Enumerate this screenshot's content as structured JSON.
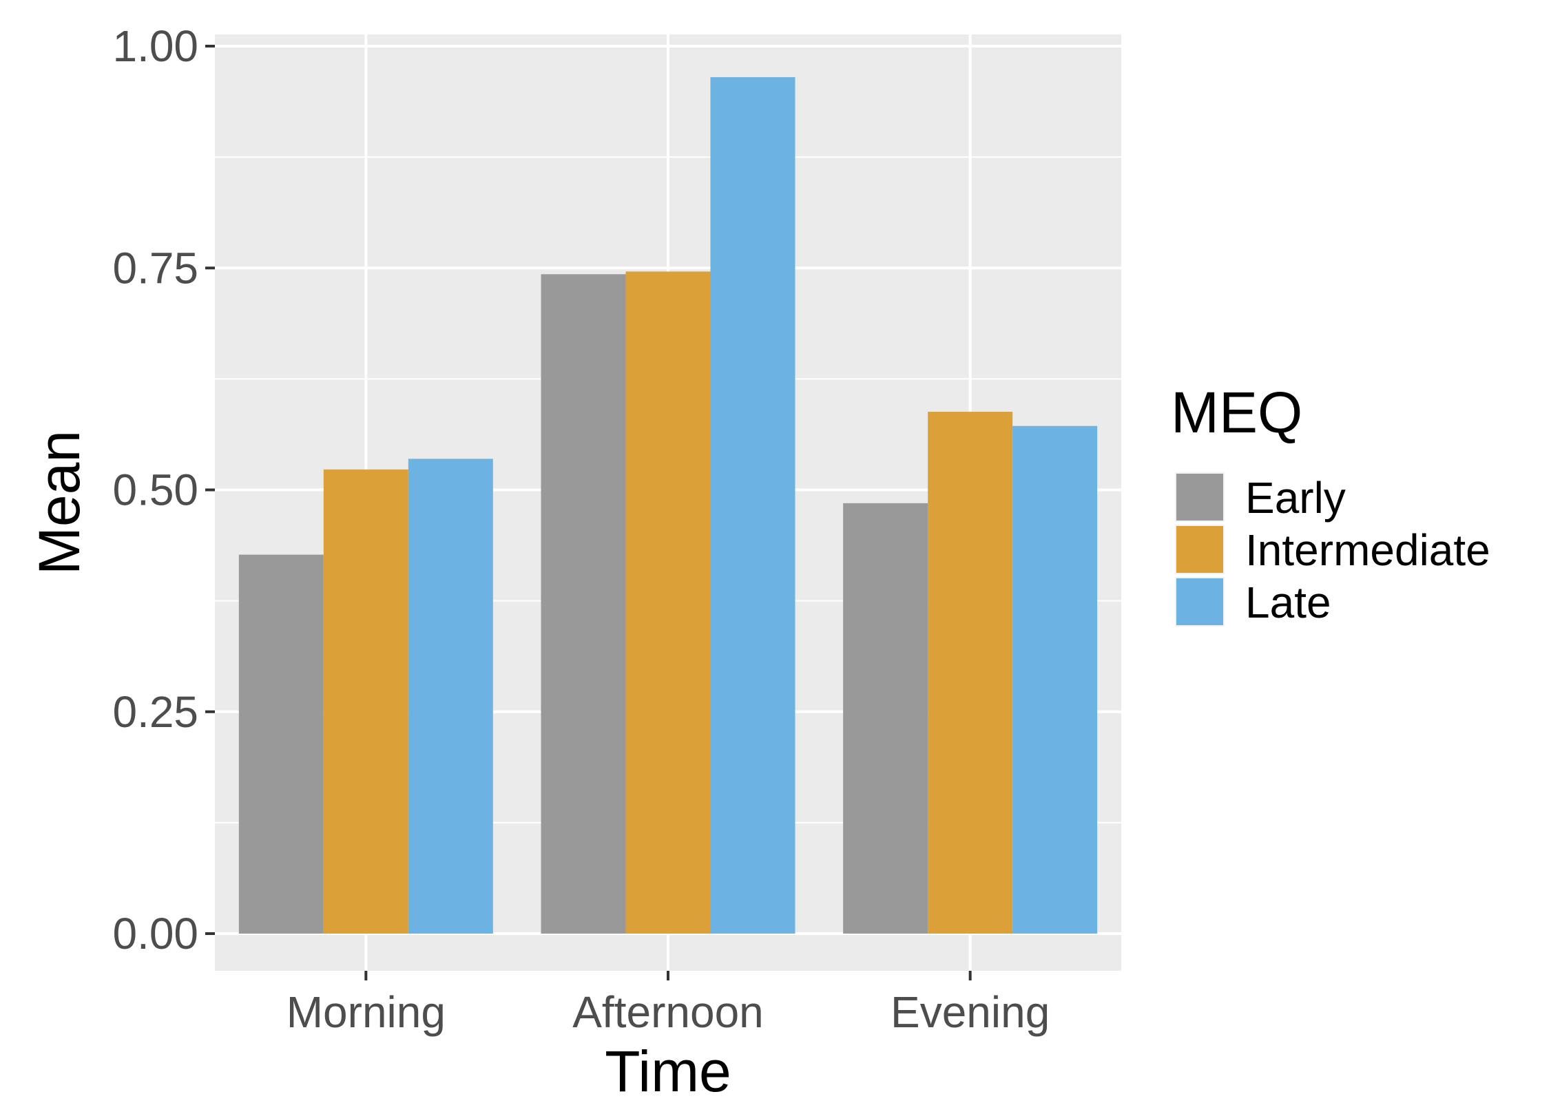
{
  "chart_data": {
    "type": "bar",
    "title": "",
    "xlabel": "Time",
    "ylabel": "Mean",
    "categories": [
      "Morning",
      "Afternoon",
      "Evening"
    ],
    "series": [
      {
        "name": "Early",
        "color": "#999999",
        "values": [
          0.427,
          0.743,
          0.485
        ]
      },
      {
        "name": "Intermediate",
        "color": "#dba138",
        "values": [
          0.523,
          0.746,
          0.588
        ]
      },
      {
        "name": "Late",
        "color": "#6cb2e2",
        "values": [
          0.535,
          0.965,
          0.572
        ]
      }
    ],
    "ylim": [
      0,
      1.0
    ],
    "yticks": [
      "0.00",
      "0.25",
      "0.50",
      "0.75",
      "1.00"
    ],
    "grid": true,
    "legend": {
      "title": "MEQ",
      "placement": "right"
    },
    "panel_background": "#ebebeb",
    "grid_color": "#ffffff"
  }
}
